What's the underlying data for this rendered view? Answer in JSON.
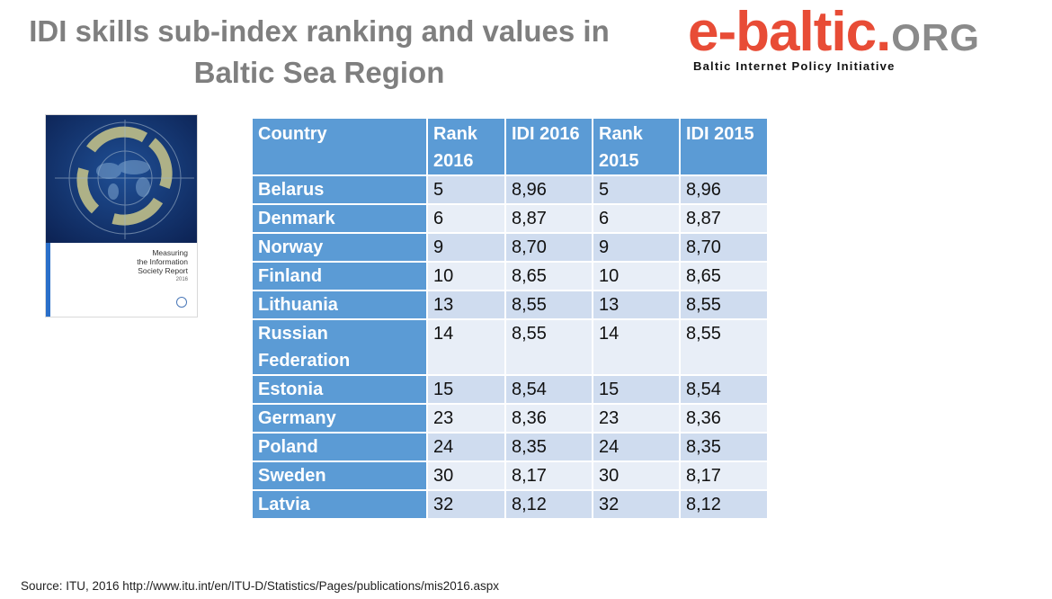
{
  "title": {
    "line1": "IDI skills sub-index ranking and values in",
    "line2": "Baltic Sea Region"
  },
  "logo": {
    "name": "e-baltic",
    "dot": ".",
    "org": "ORG",
    "tagline": "Baltic Internet Policy Initiative"
  },
  "cover": {
    "title_line1": "Measuring",
    "title_line2": "the Information",
    "title_line3": "Society Report",
    "year": "2016"
  },
  "table": {
    "headers": [
      "Country",
      "Rank 2016",
      "IDI 2016",
      "Rank 2015",
      "IDI 2015"
    ],
    "rows": [
      [
        "Belarus",
        "5",
        "8,96",
        "5",
        "8,96"
      ],
      [
        "Denmark",
        "6",
        "8,87",
        "6",
        "8,87"
      ],
      [
        "Norway",
        "9",
        "8,70",
        "9",
        "8,70"
      ],
      [
        "Finland",
        "10",
        "8,65",
        "10",
        "8,65"
      ],
      [
        "Lithuania",
        "13",
        "8,55",
        "13",
        "8,55"
      ],
      [
        "Russian Federation",
        "14",
        "8,55",
        "14",
        "8,55"
      ],
      [
        "Estonia",
        "15",
        "8,54",
        "15",
        "8,54"
      ],
      [
        "Germany",
        "23",
        "8,36",
        "23",
        "8,36"
      ],
      [
        "Poland",
        "24",
        "8,35",
        "24",
        "8,35"
      ],
      [
        "Sweden",
        "30",
        "8,17",
        "30",
        "8,17"
      ],
      [
        "Latvia",
        "32",
        "8,12",
        "32",
        "8,12"
      ]
    ]
  },
  "source": "Source: ITU, 2016 http://www.itu.int/en/ITU-D/Statistics/Pages/publications/mis2016.aspx",
  "colors": {
    "header_bg": "#5b9bd5",
    "row_odd": "#cfdcef",
    "row_even": "#e8eef7",
    "logo_red": "#e84c36",
    "logo_grey": "#8a8a8a",
    "title_grey": "#7f7f7f"
  }
}
